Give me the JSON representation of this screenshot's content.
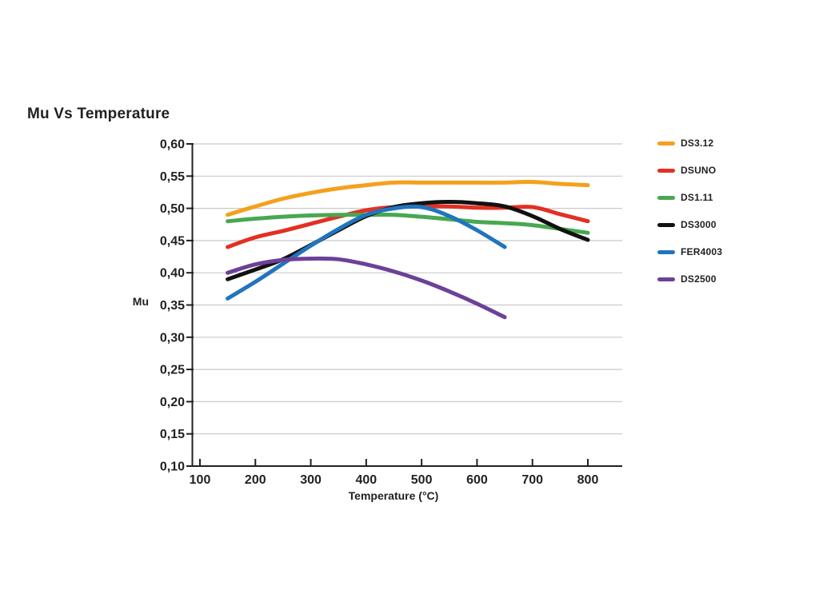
{
  "chart_data": {
    "type": "line",
    "title": "Mu Vs Temperature",
    "xlabel": "Temperature (°C)",
    "ylabel": "Mu",
    "xlim": [
      100,
      862
    ],
    "ylim": [
      0.1,
      0.6
    ],
    "grid": "horizontal",
    "legend_position": "right",
    "decimal_separator": ",",
    "axis_color": "#231f20",
    "grid_color": "#c9caca",
    "x_ticks": [
      {
        "value": 100,
        "label": "100"
      },
      {
        "value": 200,
        "label": "200"
      },
      {
        "value": 300,
        "label": "300"
      },
      {
        "value": 400,
        "label": "400"
      },
      {
        "value": 500,
        "label": "500"
      },
      {
        "value": 600,
        "label": "600"
      },
      {
        "value": 700,
        "label": "700"
      },
      {
        "value": 800,
        "label": "800"
      }
    ],
    "y_ticks": [
      {
        "value": 0.6,
        "label": "0,60"
      },
      {
        "value": 0.55,
        "label": "0,55"
      },
      {
        "value": 0.5,
        "label": "0,50"
      },
      {
        "value": 0.45,
        "label": "0,45"
      },
      {
        "value": 0.4,
        "label": "0,40"
      },
      {
        "value": 0.35,
        "label": "0,35"
      },
      {
        "value": 0.3,
        "label": "0,30"
      },
      {
        "value": 0.25,
        "label": "0,25"
      },
      {
        "value": 0.2,
        "label": "0,20"
      },
      {
        "value": 0.15,
        "label": "0,15"
      },
      {
        "value": 0.1,
        "label": "0,10"
      }
    ],
    "series": [
      {
        "name": "DS3.12",
        "color": "#F5A01E",
        "points": [
          [
            150,
            0.49
          ],
          [
            200,
            0.503
          ],
          [
            250,
            0.515
          ],
          [
            300,
            0.524
          ],
          [
            350,
            0.531
          ],
          [
            400,
            0.536
          ],
          [
            450,
            0.54
          ],
          [
            500,
            0.54
          ],
          [
            550,
            0.54
          ],
          [
            600,
            0.54
          ],
          [
            650,
            0.54
          ],
          [
            700,
            0.541
          ],
          [
            750,
            0.538
          ],
          [
            800,
            0.536
          ]
        ]
      },
      {
        "name": "DSUNO",
        "color": "#E23023",
        "points": [
          [
            150,
            0.44
          ],
          [
            200,
            0.455
          ],
          [
            250,
            0.465
          ],
          [
            300,
            0.476
          ],
          [
            350,
            0.487
          ],
          [
            400,
            0.497
          ],
          [
            450,
            0.502
          ],
          [
            500,
            0.503
          ],
          [
            550,
            0.503
          ],
          [
            600,
            0.501
          ],
          [
            650,
            0.501
          ],
          [
            700,
            0.502
          ],
          [
            750,
            0.491
          ],
          [
            800,
            0.48
          ]
        ]
      },
      {
        "name": "DS1.11",
        "color": "#47A851",
        "points": [
          [
            150,
            0.48
          ],
          [
            200,
            0.484
          ],
          [
            250,
            0.487
          ],
          [
            300,
            0.489
          ],
          [
            350,
            0.49
          ],
          [
            400,
            0.49
          ],
          [
            450,
            0.49
          ],
          [
            500,
            0.487
          ],
          [
            550,
            0.483
          ],
          [
            600,
            0.479
          ],
          [
            650,
            0.477
          ],
          [
            700,
            0.474
          ],
          [
            750,
            0.468
          ],
          [
            800,
            0.462
          ]
        ]
      },
      {
        "name": "DS3000",
        "color": "#111111",
        "points": [
          [
            150,
            0.39
          ],
          [
            200,
            0.405
          ],
          [
            250,
            0.421
          ],
          [
            300,
            0.443
          ],
          [
            350,
            0.466
          ],
          [
            400,
            0.488
          ],
          [
            450,
            0.502
          ],
          [
            500,
            0.508
          ],
          [
            550,
            0.51
          ],
          [
            600,
            0.508
          ],
          [
            650,
            0.503
          ],
          [
            700,
            0.488
          ],
          [
            750,
            0.468
          ],
          [
            800,
            0.451
          ]
        ]
      },
      {
        "name": "FER4003",
        "color": "#2175BC",
        "points": [
          [
            150,
            0.36
          ],
          [
            200,
            0.386
          ],
          [
            250,
            0.414
          ],
          [
            300,
            0.442
          ],
          [
            350,
            0.468
          ],
          [
            400,
            0.49
          ],
          [
            450,
            0.5
          ],
          [
            500,
            0.502
          ],
          [
            550,
            0.488
          ],
          [
            600,
            0.466
          ],
          [
            650,
            0.44
          ]
        ]
      },
      {
        "name": "DS2500",
        "color": "#6C4198",
        "points": [
          [
            150,
            0.4
          ],
          [
            200,
            0.413
          ],
          [
            250,
            0.42
          ],
          [
            300,
            0.422
          ],
          [
            350,
            0.421
          ],
          [
            400,
            0.413
          ],
          [
            450,
            0.402
          ],
          [
            500,
            0.388
          ],
          [
            550,
            0.371
          ],
          [
            600,
            0.352
          ],
          [
            650,
            0.331
          ]
        ]
      }
    ]
  }
}
